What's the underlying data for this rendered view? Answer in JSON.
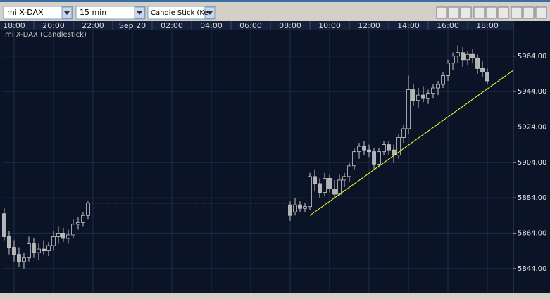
{
  "toolbar": {
    "symbol": "mi X-DAX",
    "interval": "15 min",
    "chart_type": "Candle Stick (Ke"
  },
  "chart_data": {
    "type": "candlestick",
    "title": "mi X-DAX (Candlestick)",
    "x": [
      17.5,
      17.75,
      18,
      18.25,
      18.5,
      18.75,
      19,
      19.25,
      19.5,
      19.75,
      20,
      20.25,
      20.5,
      20.75,
      21,
      21.25,
      21.5,
      21.75,
      32,
      32.25,
      32.5,
      32.75,
      33,
      33.25,
      33.5,
      33.75,
      34,
      34.25,
      34.5,
      34.75,
      35,
      35.25,
      35.5,
      35.75,
      36,
      36.25,
      36.5,
      36.75,
      37,
      37.25,
      37.5,
      37.75,
      38,
      38.25,
      38.5,
      38.75,
      39,
      39.25,
      39.5,
      39.75,
      40,
      40.25,
      40.5,
      40.75,
      41,
      41.25,
      41.5,
      41.75,
      42
    ],
    "open": [
      5875,
      5862,
      5856,
      5852,
      5848,
      5850,
      5858,
      5853,
      5855,
      5854,
      5857,
      5862,
      5864,
      5861,
      5863,
      5869,
      5870,
      5874,
      5880,
      5876,
      5880,
      5878,
      5879,
      5896,
      5892,
      5887,
      5895,
      5889,
      5886,
      5894,
      5896,
      5902,
      5910,
      5913,
      5911,
      5910,
      5903,
      5910,
      5914,
      5911,
      5908,
      5918,
      5923,
      5945,
      5939,
      5942,
      5940,
      5943,
      5946,
      5948,
      5953,
      5960,
      5964,
      5966,
      5962,
      5965,
      5963,
      5957,
      5955
    ],
    "high": [
      5878,
      5865,
      5860,
      5856,
      5853,
      5862,
      5861,
      5858,
      5860,
      5859,
      5865,
      5868,
      5867,
      5866,
      5872,
      5873,
      5876,
      5882,
      5882,
      5884,
      5882,
      5881,
      5898,
      5900,
      5895,
      5898,
      5897,
      5894,
      5897,
      5898,
      5904,
      5912,
      5915,
      5916,
      5914,
      5912,
      5912,
      5916,
      5916,
      5914,
      5920,
      5925,
      5953,
      5948,
      5946,
      5947,
      5945,
      5948,
      5950,
      5955,
      5962,
      5966,
      5970,
      5969,
      5967,
      5968,
      5965,
      5961,
      5957
    ],
    "low": [
      5860,
      5852,
      5848,
      5845,
      5844,
      5848,
      5850,
      5849,
      5852,
      5851,
      5854,
      5858,
      5859,
      5858,
      5861,
      5866,
      5868,
      5872,
      5871,
      5874,
      5876,
      5876,
      5877,
      5888,
      5884,
      5885,
      5887,
      5884,
      5885,
      5890,
      5893,
      5900,
      5906,
      5908,
      5907,
      5900,
      5901,
      5908,
      5908,
      5904,
      5906,
      5915,
      5920,
      5936,
      5935,
      5938,
      5937,
      5940,
      5942,
      5946,
      5950,
      5956,
      5960,
      5958,
      5959,
      5960,
      5954,
      5952,
      5948
    ],
    "close": [
      5862,
      5856,
      5852,
      5848,
      5850,
      5858,
      5853,
      5855,
      5854,
      5857,
      5862,
      5864,
      5861,
      5863,
      5869,
      5870,
      5874,
      5881,
      5874,
      5880,
      5878,
      5879,
      5896,
      5892,
      5887,
      5895,
      5889,
      5886,
      5894,
      5896,
      5902,
      5910,
      5913,
      5911,
      5910,
      5903,
      5910,
      5914,
      5911,
      5908,
      5918,
      5923,
      5945,
      5939,
      5942,
      5940,
      5943,
      5946,
      5948,
      5953,
      5960,
      5964,
      5966,
      5962,
      5965,
      5963,
      5957,
      5955,
      5950
    ],
    "up_color": "#0b1426",
    "down_color": "#b4b4b4",
    "wick_color": "#c8c8c8",
    "trendline": {
      "x": [
        33,
        43.32
      ],
      "y": [
        5874,
        5956
      ],
      "color": "#ffff33"
    },
    "xlim": [
      17.43,
      43.32
    ],
    "xticks": [
      {
        "value": 18,
        "label": "18:00"
      },
      {
        "value": 20,
        "label": "20:00"
      },
      {
        "value": 22,
        "label": "22:00"
      },
      {
        "value": 24,
        "label": "Sep 20"
      },
      {
        "value": 26,
        "label": "02:00"
      },
      {
        "value": 28,
        "label": "04:00"
      },
      {
        "value": 30,
        "label": "06:00"
      },
      {
        "value": 32,
        "label": "08:00"
      },
      {
        "value": 34,
        "label": "10:00"
      },
      {
        "value": 36,
        "label": "12:00"
      },
      {
        "value": 38,
        "label": "14:00"
      },
      {
        "value": 40,
        "label": "16:00"
      },
      {
        "value": 42,
        "label": "18:00"
      }
    ],
    "ylim": [
      5830,
      5979
    ],
    "yticks": [
      {
        "value": 5844,
        "label": "5844.00"
      },
      {
        "value": 5864,
        "label": "5864.00"
      },
      {
        "value": 5884,
        "label": "5884.00"
      },
      {
        "value": 5904,
        "label": "5904.00"
      },
      {
        "value": 5924,
        "label": "5924.00"
      },
      {
        "value": 5944,
        "label": "5944.00"
      },
      {
        "value": 5964,
        "label": "5964.00"
      }
    ],
    "grid": true
  }
}
